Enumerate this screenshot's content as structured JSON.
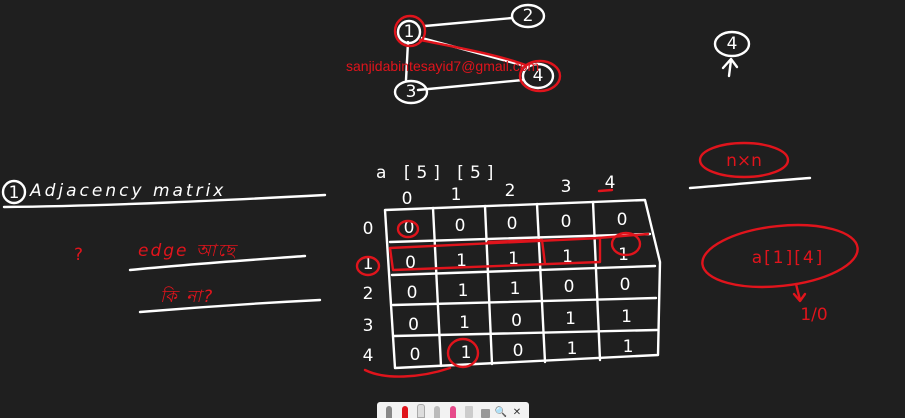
{
  "watermark": "sanjidabintesayid7@gmail.com",
  "graph": {
    "nodes": [
      {
        "id": "n1",
        "label": "1"
      },
      {
        "id": "n2",
        "label": "2"
      },
      {
        "id": "n3",
        "label": "3"
      },
      {
        "id": "n4",
        "label": "4"
      }
    ],
    "side_node_label": "4"
  },
  "heading": {
    "number": "1",
    "text": "Adjacency matrix"
  },
  "question": {
    "mark": "?",
    "line1": "edge আছে",
    "line2": "কি না?"
  },
  "matrix": {
    "declaration": "a [5] [5]",
    "col_headers": [
      "0",
      "1",
      "2",
      "3",
      "4"
    ],
    "row_headers": [
      "0",
      "1",
      "2",
      "3",
      "4"
    ],
    "cells": [
      [
        "0",
        "0",
        "0",
        "0",
        "0"
      ],
      [
        "0",
        "1",
        "1",
        "1",
        "1"
      ],
      [
        "0",
        "1",
        "1",
        "0",
        "0"
      ],
      [
        "0",
        "1",
        "0",
        "1",
        "1"
      ],
      [
        "0",
        "1",
        "0",
        "1",
        "1"
      ]
    ]
  },
  "notes": {
    "size": "n×n",
    "access": "a[1][4]",
    "result": "1/0"
  },
  "toolbar": {
    "tools": [
      "pen-tool",
      "pen-red",
      "pen-white",
      "pen-gray",
      "pen-pink",
      "highlighter",
      "eraser",
      "search",
      "close"
    ],
    "search_glyph": "🔍",
    "close_glyph": "✕"
  },
  "colors": {
    "background": "#1f1f1f",
    "chalk": "#ffffff",
    "marker": "#e0141c"
  }
}
